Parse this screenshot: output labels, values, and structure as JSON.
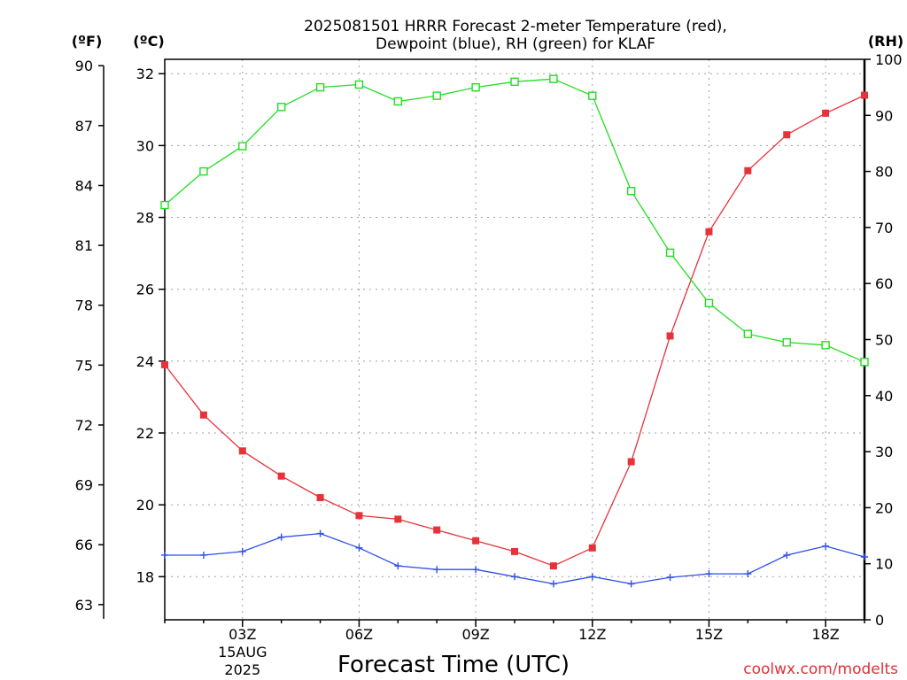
{
  "chart_data": {
    "type": "line",
    "title": [
      "2025081501 HRRR Forecast 2-meter Temperature (red),",
      "Dewpoint (blue), RH (green) for KLAF"
    ],
    "xlabel": "Forecast Time (UTC)",
    "credit": "coolwx.com/modelts",
    "units": {
      "left_f": "(ºF)",
      "left_c": "(ºC)",
      "right": "(RH)"
    },
    "x": [
      "01Z",
      "02Z",
      "03Z",
      "04Z",
      "05Z",
      "06Z",
      "07Z",
      "08Z",
      "09Z",
      "10Z",
      "11Z",
      "12Z",
      "13Z",
      "14Z",
      "15Z",
      "16Z",
      "17Z",
      "18Z",
      "19Z"
    ],
    "x_ticks": [
      "03Z",
      "06Z",
      "09Z",
      "12Z",
      "15Z",
      "18Z"
    ],
    "x_date_label": [
      "15AUG",
      "2025"
    ],
    "y_celsius": {
      "range": [
        16.8,
        32.4
      ],
      "ticks": [
        18,
        20,
        22,
        24,
        26,
        28,
        30,
        32
      ]
    },
    "y_fahrenheit": {
      "ticks": [
        63,
        66,
        69,
        72,
        75,
        78,
        81,
        84,
        87,
        90
      ]
    },
    "y_rh": {
      "range": [
        0,
        100
      ],
      "ticks": [
        0,
        10,
        20,
        30,
        40,
        50,
        60,
        70,
        80,
        90,
        100
      ]
    },
    "grid": true,
    "series": [
      {
        "name": "Temperature",
        "axis": "celsius",
        "color": "#e8323a",
        "marker": "filled-square",
        "values": [
          23.9,
          22.5,
          21.5,
          20.8,
          20.2,
          19.7,
          19.6,
          19.3,
          19.0,
          18.7,
          18.3,
          18.8,
          21.2,
          24.7,
          27.6,
          29.3,
          30.3,
          30.9,
          31.4
        ]
      },
      {
        "name": "Dewpoint",
        "axis": "celsius",
        "color": "#2f4fe8",
        "marker": "plus",
        "values": [
          18.6,
          18.6,
          18.7,
          19.1,
          19.2,
          18.8,
          18.3,
          18.2,
          18.2,
          18.0,
          17.8,
          18.0,
          17.8,
          17.98,
          18.08,
          18.08,
          18.6,
          18.85,
          18.55
        ]
      },
      {
        "name": "RH",
        "axis": "rh",
        "color": "#22dd22",
        "marker": "open-square",
        "values": [
          74,
          80,
          84.5,
          91.5,
          95,
          95.5,
          92.5,
          93.5,
          95,
          96,
          96.5,
          93.5,
          76.5,
          65.5,
          56.5,
          51,
          49.5,
          49,
          46
        ]
      }
    ]
  }
}
